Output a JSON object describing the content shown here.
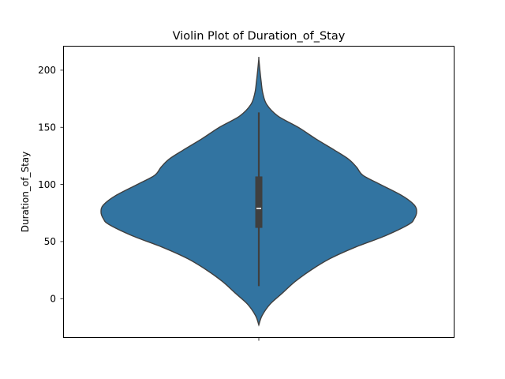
{
  "chart_data": {
    "type": "violin",
    "title": "Violin Plot of Duration_of_Stay",
    "xlabel": "",
    "ylabel": "Duration_of_Stay",
    "ylim": [
      -34,
      221
    ],
    "yticks": [
      0,
      50,
      100,
      150,
      200
    ],
    "grid": false,
    "legend": "none",
    "violin": {
      "color": "#3274a1",
      "edge_color": "#3f3f3f",
      "density_range": [
        -23,
        210
      ],
      "profile": [
        [
          -23,
          0.0
        ],
        [
          -15,
          0.02
        ],
        [
          -5,
          0.07
        ],
        [
          5,
          0.15
        ],
        [
          15,
          0.23
        ],
        [
          25,
          0.33
        ],
        [
          35,
          0.45
        ],
        [
          45,
          0.61
        ],
        [
          55,
          0.8
        ],
        [
          65,
          0.95
        ],
        [
          70,
          0.985
        ],
        [
          76,
          1.0
        ],
        [
          82,
          0.985
        ],
        [
          90,
          0.91
        ],
        [
          100,
          0.77
        ],
        [
          108,
          0.66
        ],
        [
          115,
          0.62
        ],
        [
          122,
          0.57
        ],
        [
          130,
          0.48
        ],
        [
          140,
          0.36
        ],
        [
          150,
          0.25
        ],
        [
          160,
          0.12
        ],
        [
          170,
          0.05
        ],
        [
          180,
          0.025
        ],
        [
          190,
          0.015
        ],
        [
          200,
          0.007
        ],
        [
          210,
          0.0
        ]
      ],
      "whisker_low": 11,
      "whisker_high": 163,
      "q1": 62,
      "median": 79,
      "q3": 107
    }
  }
}
